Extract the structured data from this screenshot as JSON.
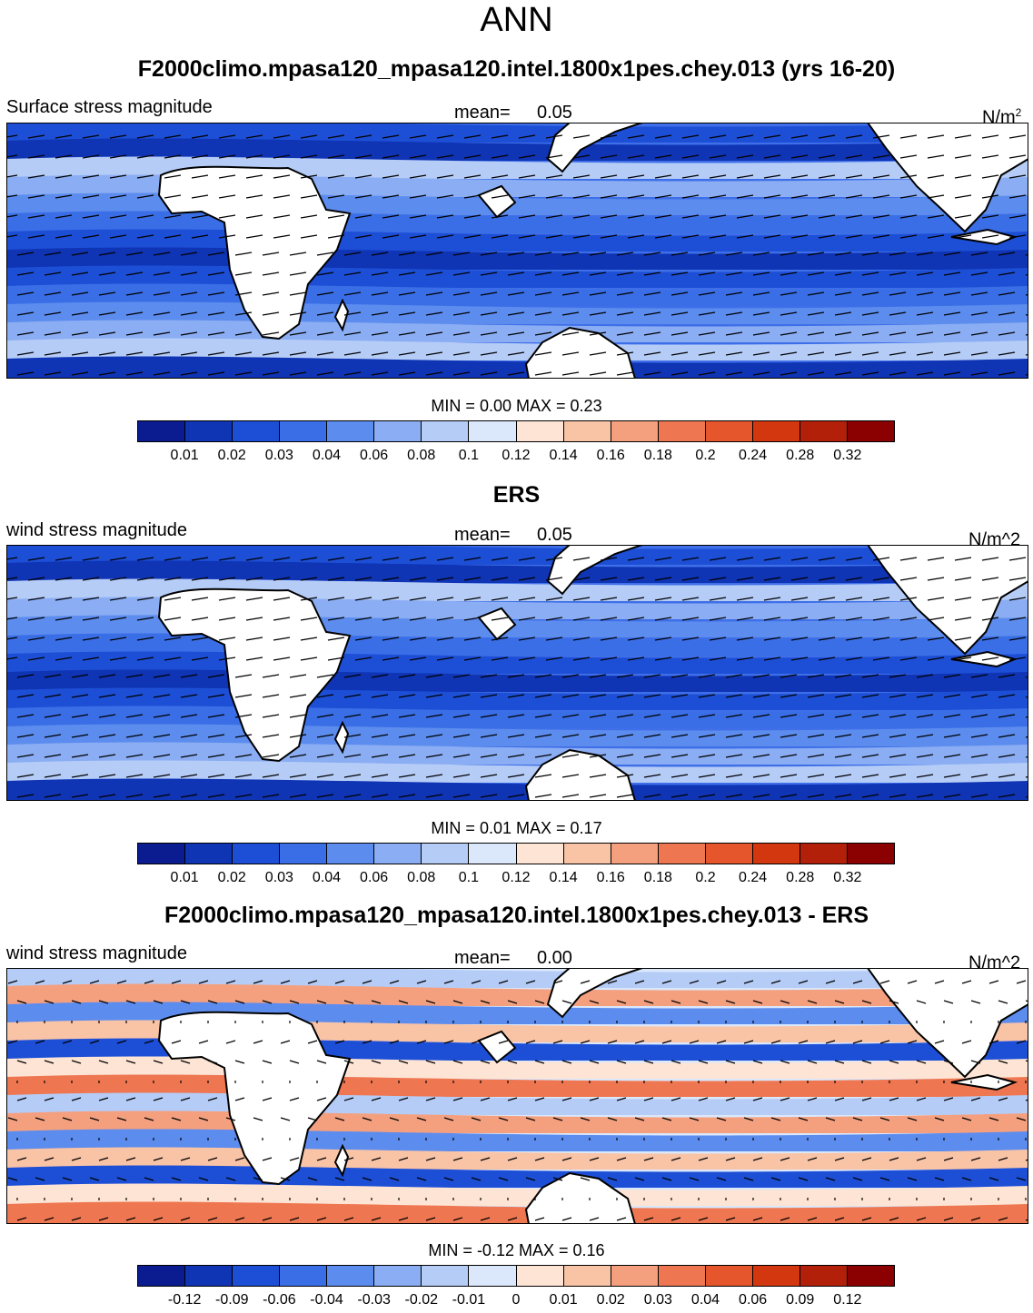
{
  "figure": {
    "title": "ANN"
  },
  "panels": [
    {
      "title": "F2000climo.mpasa120_mpasa120.intel.1800x1pes.chey.013 (yrs 16-20)",
      "left_label": "Surface stress magnitude",
      "mean_label": "mean=",
      "mean_value": "0.05",
      "units_main": "N/m",
      "units_sup": "2",
      "min_label": "MIN =",
      "min_value": "0.00",
      "max_label": "MAX =",
      "max_value": "0.23",
      "colorbar_ticks": [
        "0.01",
        "0.02",
        "0.03",
        "0.04",
        "0.06",
        "0.08",
        "0.1",
        "0.12",
        "0.14",
        "0.16",
        "0.18",
        "0.2",
        "0.24",
        "0.28",
        "0.32"
      ],
      "colorbar_colors": [
        "#0a1c8f",
        "#0f34b4",
        "#1d4fd6",
        "#3a6ee6",
        "#5c8cee",
        "#8aadf3",
        "#b5ccf7",
        "#dbe8fb",
        "#fde4d4",
        "#f9c3a6",
        "#f4a07f",
        "#ee7751",
        "#e5562c",
        "#d2370f",
        "#b3200a",
        "#8b0000"
      ],
      "map_type": "magnitude"
    },
    {
      "title": "ERS",
      "left_label": "wind stress magnitude",
      "mean_label": "mean=",
      "mean_value": "0.05",
      "units_main": "N/m^2",
      "units_sup": "",
      "min_label": "MIN =",
      "min_value": "0.01",
      "max_label": "MAX =",
      "max_value": "0.17",
      "colorbar_ticks": [
        "0.01",
        "0.02",
        "0.03",
        "0.04",
        "0.06",
        "0.08",
        "0.1",
        "0.12",
        "0.14",
        "0.16",
        "0.18",
        "0.2",
        "0.24",
        "0.28",
        "0.32"
      ],
      "colorbar_colors": [
        "#0a1c8f",
        "#0f34b4",
        "#1d4fd6",
        "#3a6ee6",
        "#5c8cee",
        "#8aadf3",
        "#b5ccf7",
        "#dbe8fb",
        "#fde4d4",
        "#f9c3a6",
        "#f4a07f",
        "#ee7751",
        "#e5562c",
        "#d2370f",
        "#b3200a",
        "#8b0000"
      ],
      "map_type": "magnitude"
    },
    {
      "title": "F2000climo.mpasa120_mpasa120.intel.1800x1pes.chey.013 - ERS",
      "left_label": "wind stress magnitude",
      "mean_label": "mean=",
      "mean_value": "0.00",
      "units_main": "N/m^2",
      "units_sup": "",
      "min_label": "MIN =",
      "min_value": "-0.12",
      "max_label": "MAX =",
      "max_value": "0.16",
      "colorbar_ticks": [
        "-0.12",
        "-0.09",
        "-0.06",
        "-0.04",
        "-0.03",
        "-0.02",
        "-0.01",
        "0",
        "0.01",
        "0.02",
        "0.03",
        "0.04",
        "0.06",
        "0.09",
        "0.12"
      ],
      "colorbar_colors": [
        "#0a1c8f",
        "#0f34b4",
        "#1d4fd6",
        "#3a6ee6",
        "#5c8cee",
        "#8aadf3",
        "#b5ccf7",
        "#dbe8fb",
        "#fde4d4",
        "#f9c3a6",
        "#f4a07f",
        "#ee7751",
        "#e5562c",
        "#d2370f",
        "#b3200a",
        "#8b0000"
      ],
      "map_type": "difference"
    }
  ],
  "map_style": {
    "land_color": "#ffffff",
    "coast_color": "#000000",
    "vector_color": "#000000"
  }
}
